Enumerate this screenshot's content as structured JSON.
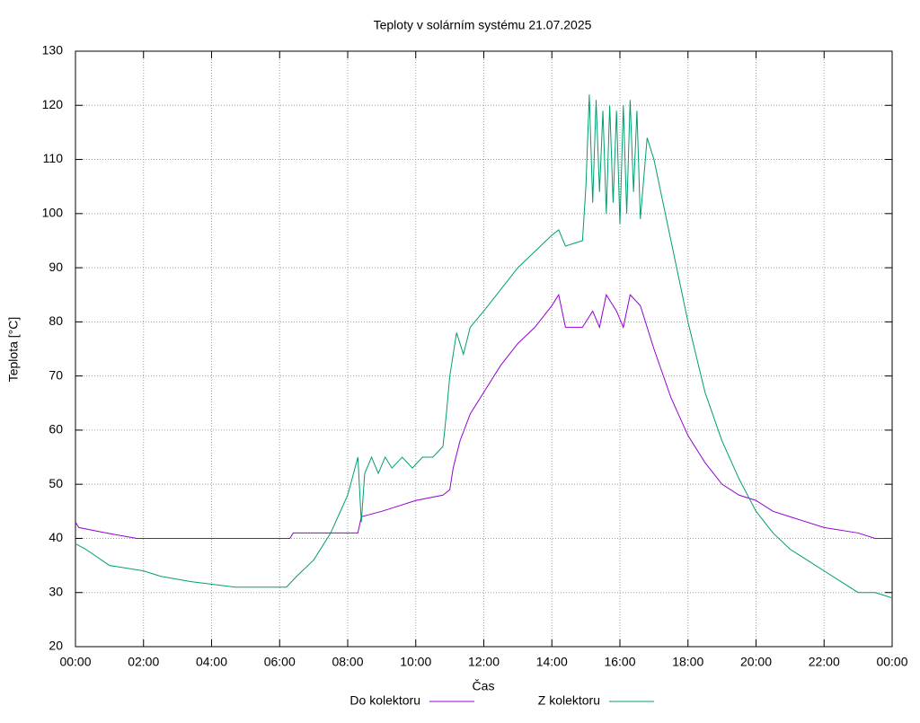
{
  "chart_data": {
    "type": "line",
    "title": "Teploty v solárním systému 21.07.2025",
    "x_label": "Čas",
    "y_label": "Teplota [°C]",
    "xlim": [
      0,
      24
    ],
    "ylim": [
      20,
      130
    ],
    "xticks": [
      {
        "value": 0,
        "label": "00:00"
      },
      {
        "value": 2,
        "label": "02:00"
      },
      {
        "value": 4,
        "label": "04:00"
      },
      {
        "value": 6,
        "label": "06:00"
      },
      {
        "value": 8,
        "label": "08:00"
      },
      {
        "value": 10,
        "label": "10:00"
      },
      {
        "value": 12,
        "label": "12:00"
      },
      {
        "value": 14,
        "label": "14:00"
      },
      {
        "value": 16,
        "label": "16:00"
      },
      {
        "value": 18,
        "label": "18:00"
      },
      {
        "value": 20,
        "label": "20:00"
      },
      {
        "value": 22,
        "label": "22:00"
      },
      {
        "value": 24,
        "label": "00:00"
      }
    ],
    "yticks": [
      20,
      30,
      40,
      50,
      60,
      70,
      80,
      90,
      100,
      110,
      120,
      130
    ],
    "grid": true,
    "legend": "bottom",
    "series": [
      {
        "name": "Do kolektoru",
        "color": "#9400d3",
        "x": [
          0,
          0.1,
          0.9,
          1.8,
          6.3,
          6.4,
          8.3,
          8.4,
          9,
          9.5,
          10,
          10.8,
          11,
          11.1,
          11.3,
          11.6,
          12,
          12.5,
          13,
          13.5,
          14,
          14.2,
          14.4,
          14.9,
          15.2,
          15.4,
          15.6,
          15.9,
          16.1,
          16.3,
          16.6,
          17,
          17.5,
          18,
          18.5,
          19,
          19.5,
          20,
          20.5,
          21,
          22,
          23,
          23.5,
          24
        ],
        "values": [
          43,
          42,
          41,
          40,
          40,
          41,
          41,
          44,
          45,
          46,
          47,
          48,
          49,
          53,
          58,
          63,
          67,
          72,
          76,
          79,
          83,
          85,
          79,
          79,
          82,
          79,
          85,
          82,
          79,
          85,
          83,
          75,
          66,
          59,
          54,
          50,
          48,
          47,
          45,
          44,
          42,
          41,
          40,
          40
        ]
      },
      {
        "name": "Z kolektoru",
        "color": "#009e73",
        "x": [
          0,
          0.3,
          1,
          2,
          2.5,
          3.4,
          4.7,
          6.2,
          6.5,
          7,
          7.5,
          8,
          8.3,
          8.4,
          8.5,
          8.7,
          8.9,
          9.1,
          9.3,
          9.6,
          9.9,
          10.2,
          10.5,
          10.8,
          10.9,
          11,
          11.2,
          11.4,
          11.6,
          12,
          12.5,
          13,
          13.5,
          14,
          14.2,
          14.4,
          14.9,
          15,
          15.1,
          15.2,
          15.3,
          15.4,
          15.5,
          15.6,
          15.7,
          15.8,
          15.9,
          16,
          16.1,
          16.2,
          16.3,
          16.4,
          16.5,
          16.6,
          16.8,
          17,
          17.4,
          18,
          18.5,
          19,
          19.5,
          20,
          20.5,
          21,
          21.5,
          22,
          22.5,
          23,
          23.5,
          24
        ],
        "values": [
          39,
          38,
          35,
          34,
          33,
          32,
          31,
          31,
          33,
          36,
          41,
          48,
          55,
          43,
          52,
          55,
          52,
          55,
          53,
          55,
          53,
          55,
          55,
          57,
          63,
          70,
          78,
          74,
          79,
          82,
          86,
          90,
          93,
          96,
          97,
          94,
          95,
          105,
          122,
          102,
          121,
          104,
          119,
          100,
          120,
          102,
          119,
          98,
          120,
          100,
          121,
          104,
          119,
          99,
          114,
          110,
          98,
          80,
          67,
          58,
          51,
          45,
          41,
          38,
          36,
          34,
          32,
          30,
          30,
          29
        ]
      }
    ]
  }
}
